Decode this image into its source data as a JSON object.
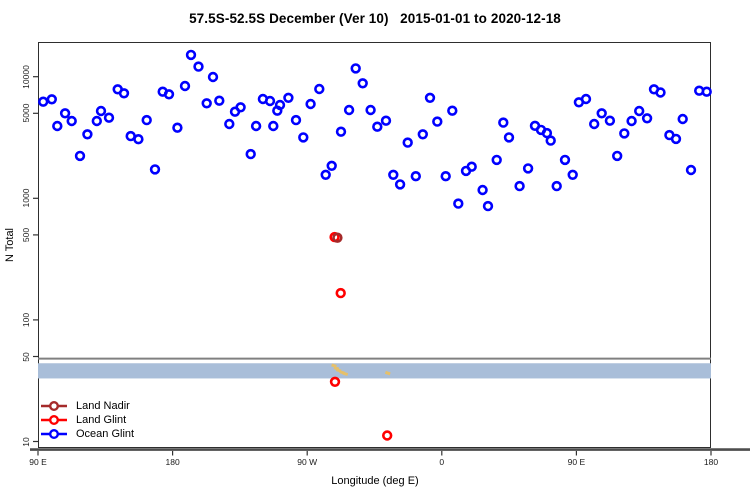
{
  "title": "57.5S-52.5S December (Ver 10)   2015-01-01 to 2020-12-18",
  "axes": {
    "x": {
      "label": "Longitude (deg E)",
      "ticks": [
        {
          "lon": 90,
          "label": "90 E"
        },
        {
          "lon": 180,
          "label": "180"
        },
        {
          "lon": 270,
          "label": "90 W"
        },
        {
          "lon": 360,
          "label": "0"
        },
        {
          "lon": 450,
          "label": "90 E"
        },
        {
          "lon": 540,
          "label": "180"
        }
      ]
    },
    "y": {
      "label": "N Total",
      "scale": "log10",
      "ticks": [
        10000,
        5000,
        1000,
        500,
        100,
        50,
        10
      ],
      "range": [
        10,
        20000
      ]
    }
  },
  "legend": {
    "entries": [
      {
        "label": "Land Nadir",
        "color": "#A52A2A"
      },
      {
        "label": "Land Glint",
        "color": "#FF0000"
      },
      {
        "label": "Ocean Glint",
        "color": "#0000FF"
      }
    ]
  },
  "chart_data": {
    "type": "scatter",
    "x_unit": "degrees east measured continuously along axis from 90E (90 to 540)",
    "y_unit": "N Total (log scale)",
    "series": [
      {
        "name": "Ocean Glint",
        "color": "#0000FF",
        "points": [
          [
            93.5,
            6230
          ],
          [
            99.2,
            6520
          ],
          [
            102.9,
            3930
          ],
          [
            108.1,
            5000
          ],
          [
            112.5,
            4320
          ],
          [
            118.1,
            2230
          ],
          [
            123.0,
            3360
          ],
          [
            129.3,
            4320
          ],
          [
            132.1,
            5220
          ],
          [
            137.5,
            4600
          ],
          [
            143.3,
            7880
          ],
          [
            147.5,
            7300
          ],
          [
            152.0,
            3250
          ],
          [
            157.1,
            3060
          ],
          [
            162.7,
            4400
          ],
          [
            168.2,
            1730
          ],
          [
            173.4,
            7530
          ],
          [
            177.6,
            7160
          ],
          [
            183.2,
            3810
          ],
          [
            188.3,
            8390
          ],
          [
            192.3,
            15100
          ],
          [
            197.3,
            12100
          ],
          [
            202.8,
            6040
          ],
          [
            207.0,
            9950
          ],
          [
            211.2,
            6350
          ],
          [
            217.9,
            4080
          ],
          [
            221.7,
            5150
          ],
          [
            225.5,
            5600
          ],
          [
            232.2,
            2310
          ],
          [
            235.8,
            3930
          ],
          [
            240.4,
            6560
          ],
          [
            245.1,
            6310
          ],
          [
            247.3,
            3930
          ],
          [
            250.0,
            5250
          ],
          [
            251.8,
            5850
          ],
          [
            257.4,
            6710
          ],
          [
            262.5,
            4400
          ],
          [
            267.4,
            3170
          ],
          [
            272.3,
            5960
          ],
          [
            278.1,
            7920
          ],
          [
            282.4,
            1560
          ],
          [
            286.4,
            1850
          ],
          [
            292.6,
            3530
          ],
          [
            298.0,
            5320
          ],
          [
            302.4,
            11700
          ],
          [
            307.1,
            8830
          ],
          [
            312.4,
            5320
          ],
          [
            316.9,
            3880
          ],
          [
            322.7,
            4350
          ],
          [
            327.6,
            1560
          ],
          [
            332.1,
            1300
          ],
          [
            337.2,
            2870
          ],
          [
            342.6,
            1520
          ],
          [
            347.3,
            3360
          ],
          [
            352.1,
            6710
          ],
          [
            357.0,
            4270
          ],
          [
            362.6,
            1520
          ],
          [
            367.0,
            5250
          ],
          [
            371.0,
            905
          ],
          [
            376.2,
            1680
          ],
          [
            380.0,
            1820
          ],
          [
            387.3,
            1170
          ],
          [
            390.9,
            863
          ],
          [
            396.7,
            2070
          ],
          [
            401.1,
            4190
          ],
          [
            404.9,
            3170
          ],
          [
            412.0,
            1260
          ],
          [
            417.7,
            1760
          ],
          [
            422.3,
            3950
          ],
          [
            426.3,
            3650
          ],
          [
            430.3,
            3440
          ],
          [
            432.8,
            2980
          ],
          [
            436.8,
            1260
          ],
          [
            442.4,
            2070
          ],
          [
            447.5,
            1560
          ],
          [
            451.7,
            6160
          ],
          [
            456.4,
            6560
          ],
          [
            461.9,
            4080
          ],
          [
            466.9,
            5000
          ],
          [
            472.4,
            4350
          ],
          [
            477.3,
            2230
          ],
          [
            482.0,
            3420
          ],
          [
            486.9,
            4320
          ],
          [
            492.0,
            5220
          ],
          [
            497.3,
            4550
          ],
          [
            501.9,
            7880
          ],
          [
            506.2,
            7410
          ],
          [
            512.2,
            3310
          ],
          [
            516.6,
            3080
          ],
          [
            521.1,
            4490
          ],
          [
            526.6,
            1710
          ],
          [
            532.1,
            7670
          ],
          [
            537.1,
            7530
          ]
        ]
      },
      {
        "name": "Land Glint",
        "color": "#FF0000",
        "points": [
          [
            288.3,
            480
          ],
          [
            292.4,
            166
          ],
          [
            288.6,
            31
          ],
          [
            323.5,
            11.2
          ]
        ]
      },
      {
        "name": "Land Nadir",
        "color": "#A52A2A",
        "points": [
          [
            290.2,
            474
          ]
        ]
      }
    ],
    "reference_line": {
      "n": 48,
      "color": "#808080"
    },
    "highlight_band": {
      "n_min": 33,
      "n_max": 44,
      "color": "#A9BED9"
    },
    "aux_marks": {
      "color": "#E6C06A",
      "points": [
        [
          287.9,
          42
        ],
        [
          289.5,
          40
        ],
        [
          291.0,
          38.5
        ],
        [
          293.3,
          37
        ],
        [
          295.5,
          36
        ],
        [
          323.9,
          36.5
        ]
      ]
    }
  }
}
